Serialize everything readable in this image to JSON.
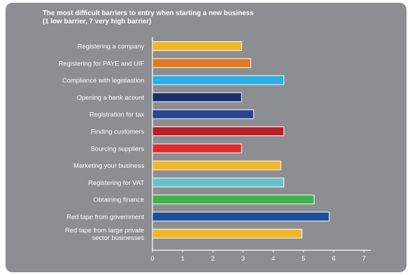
{
  "chart_data": {
    "type": "bar",
    "orientation": "horizontal",
    "title": "The most difficult barriers to entry when starting a new business",
    "subtitle": "(1 low barrier, 7 very high barrier)",
    "categories": [
      [
        "Registering a company"
      ],
      [
        "Registering for PAYE and UIF"
      ],
      [
        "Compliance with legislastion"
      ],
      [
        "Opening a bank acount"
      ],
      [
        "Registration for tax"
      ],
      [
        "Finding customers"
      ],
      [
        "Sourcing suppliers"
      ],
      [
        "Marketing your business"
      ],
      [
        "Registering for VAT"
      ],
      [
        "Obtaining finance"
      ],
      [
        "Red tape from government"
      ],
      [
        "Red tape from  large private",
        "sector businesses"
      ]
    ],
    "values": [
      2.95,
      3.25,
      4.35,
      2.95,
      3.35,
      4.35,
      2.95,
      4.25,
      4.35,
      5.35,
      5.85,
      4.95
    ],
    "colors": [
      "#f0b62a",
      "#e07a22",
      "#29aee6",
      "#1a2f6b",
      "#2c4590",
      "#b81f27",
      "#dd2a2f",
      "#f0b62a",
      "#66c3c9",
      "#3fb34a",
      "#1d4e9a",
      "#f0b62a"
    ],
    "xlim": [
      0,
      7
    ],
    "xticks": [
      "0",
      "1",
      "2",
      "3",
      "4",
      "5",
      "6",
      "7"
    ],
    "grid": false
  }
}
